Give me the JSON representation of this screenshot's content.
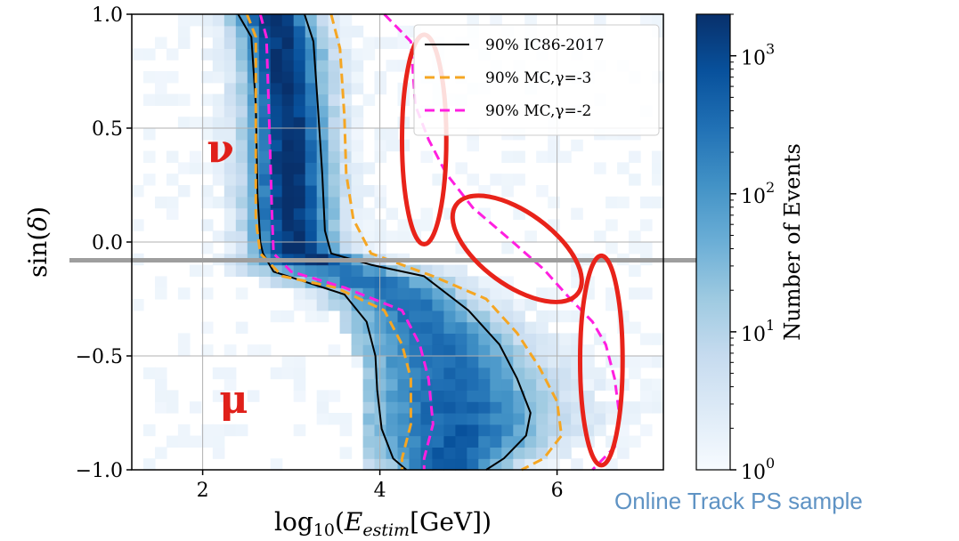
{
  "chart_data": {
    "type": "heatmap",
    "xlabel": "log10(Estim[GeV])",
    "ylabel": "sin(δ)",
    "xlim": [
      1.2,
      7.2
    ],
    "ylim": [
      -1.0,
      1.0
    ],
    "x_ticks": [
      2,
      4,
      6
    ],
    "x_tick_labels": [
      "2",
      "4",
      "6"
    ],
    "y_ticks": [
      -1.0,
      -0.5,
      0.0,
      0.5,
      1.0
    ],
    "y_tick_labels": [
      "−1.0",
      "−0.5",
      "0.0",
      "0.5",
      "1.0"
    ],
    "grid": true,
    "colorbar": {
      "label": "Number of Events",
      "scale": "log",
      "range": [
        1,
        2000
      ],
      "ticks": [
        1,
        10,
        100,
        1000
      ],
      "tick_labels": [
        "10",
        "10",
        "10",
        "10"
      ],
      "tick_exponents": [
        "0",
        "1",
        "2",
        "3"
      ],
      "colormap": [
        "#f7fbff",
        "#deebf7",
        "#c6dbef",
        "#9ecae1",
        "#6baed6",
        "#4292c6",
        "#2171b5",
        "#08519c",
        "#08306b"
      ]
    },
    "legend": {
      "placement": "top-right",
      "entries": [
        {
          "label": "90% IC86-2017",
          "color": "#000000",
          "style": "solid"
        },
        {
          "label": "90% MC,γ=-3",
          "color": "#f5a623",
          "style": "dashed"
        },
        {
          "label": "90% MC,γ=-2",
          "color": "#ff1fe0",
          "style": "dashed"
        }
      ]
    },
    "contours": [
      {
        "name": "IC86-2017 left",
        "color": "#000000",
        "dash": false,
        "points": [
          [
            2.4,
            1.0
          ],
          [
            2.55,
            0.9
          ],
          [
            2.6,
            0.6
          ],
          [
            2.62,
            0.2
          ],
          [
            2.65,
            0.0
          ],
          [
            2.68,
            -0.05
          ],
          [
            2.8,
            -0.13
          ],
          [
            3.2,
            -0.18
          ],
          [
            3.6,
            -0.23
          ],
          [
            3.85,
            -0.35
          ],
          [
            3.95,
            -0.5
          ],
          [
            3.97,
            -0.65
          ],
          [
            4.02,
            -0.82
          ],
          [
            4.15,
            -0.95
          ],
          [
            4.3,
            -1.0
          ]
        ]
      },
      {
        "name": "IC86-2017 right",
        "color": "#000000",
        "dash": false,
        "points": [
          [
            3.15,
            1.0
          ],
          [
            3.25,
            0.88
          ],
          [
            3.3,
            0.6
          ],
          [
            3.35,
            0.3
          ],
          [
            3.38,
            0.05
          ],
          [
            3.45,
            -0.05
          ],
          [
            3.9,
            -0.1
          ],
          [
            4.5,
            -0.15
          ],
          [
            5.0,
            -0.3
          ],
          [
            5.35,
            -0.45
          ],
          [
            5.55,
            -0.6
          ],
          [
            5.7,
            -0.75
          ],
          [
            5.65,
            -0.85
          ],
          [
            5.4,
            -0.95
          ],
          [
            5.2,
            -1.0
          ]
        ]
      },
      {
        "name": "MC gamma=-3 left",
        "color": "#f5a623",
        "dash": true,
        "points": [
          [
            2.5,
            1.0
          ],
          [
            2.6,
            0.9
          ],
          [
            2.6,
            0.5
          ],
          [
            2.6,
            0.1
          ],
          [
            2.65,
            -0.05
          ],
          [
            2.9,
            -0.15
          ],
          [
            3.5,
            -0.2
          ],
          [
            4.05,
            -0.3
          ],
          [
            4.25,
            -0.45
          ],
          [
            4.35,
            -0.6
          ],
          [
            4.35,
            -0.8
          ],
          [
            4.25,
            -0.95
          ],
          [
            4.25,
            -1.0
          ]
        ]
      },
      {
        "name": "MC gamma=-3 right",
        "color": "#f5a623",
        "dash": true,
        "points": [
          [
            3.45,
            1.0
          ],
          [
            3.55,
            0.85
          ],
          [
            3.6,
            0.55
          ],
          [
            3.62,
            0.3
          ],
          [
            3.7,
            0.1
          ],
          [
            3.9,
            -0.05
          ],
          [
            4.6,
            -0.15
          ],
          [
            5.2,
            -0.25
          ],
          [
            5.55,
            -0.4
          ],
          [
            5.8,
            -0.55
          ],
          [
            6.0,
            -0.7
          ],
          [
            6.05,
            -0.85
          ],
          [
            5.85,
            -0.95
          ],
          [
            5.6,
            -1.0
          ]
        ]
      },
      {
        "name": "MC gamma=-2 left",
        "color": "#ff1fe0",
        "dash": true,
        "points": [
          [
            2.65,
            1.0
          ],
          [
            2.72,
            0.9
          ],
          [
            2.75,
            0.55
          ],
          [
            2.78,
            0.15
          ],
          [
            2.8,
            -0.05
          ],
          [
            3.0,
            -0.13
          ],
          [
            3.6,
            -0.2
          ],
          [
            4.25,
            -0.3
          ],
          [
            4.45,
            -0.45
          ],
          [
            4.55,
            -0.6
          ],
          [
            4.6,
            -0.8
          ],
          [
            4.5,
            -0.95
          ],
          [
            4.5,
            -1.0
          ]
        ]
      },
      {
        "name": "MC gamma=-2 right",
        "color": "#ff1fe0",
        "dash": true,
        "points": [
          [
            4.05,
            1.0
          ],
          [
            4.35,
            0.88
          ],
          [
            4.4,
            0.6
          ],
          [
            4.55,
            0.45
          ],
          [
            4.75,
            0.3
          ],
          [
            5.05,
            0.15
          ],
          [
            5.5,
            0.0
          ],
          [
            5.85,
            -0.12
          ],
          [
            6.15,
            -0.25
          ],
          [
            6.4,
            -0.35
          ],
          [
            6.55,
            -0.45
          ],
          [
            6.65,
            -0.6
          ],
          [
            6.7,
            -0.75
          ],
          [
            6.65,
            -0.9
          ],
          [
            6.4,
            -1.0
          ]
        ]
      }
    ],
    "annotations": [
      {
        "text": "ν",
        "x": 2.2,
        "y": 0.35,
        "color": "#e0201a"
      },
      {
        "text": "μ",
        "x": 2.35,
        "y": -0.75,
        "color": "#e0201a"
      }
    ],
    "reference_line": {
      "y": -0.08,
      "color": "#9e9e9e"
    },
    "highlight_ellipses": [
      {
        "cx": 4.5,
        "cy": 0.45,
        "rx": 0.25,
        "ry": 0.46,
        "angle_deg": 0,
        "color": "#e8231a"
      },
      {
        "cx": 5.55,
        "cy": -0.03,
        "rx": 0.85,
        "ry": 0.16,
        "angle_deg": 36,
        "color": "#e8231a"
      },
      {
        "cx": 6.5,
        "cy": -0.52,
        "rx": 0.24,
        "ry": 0.46,
        "angle_deg": 0,
        "color": "#e8231a"
      }
    ]
  },
  "caption": "Online Track PS sample"
}
